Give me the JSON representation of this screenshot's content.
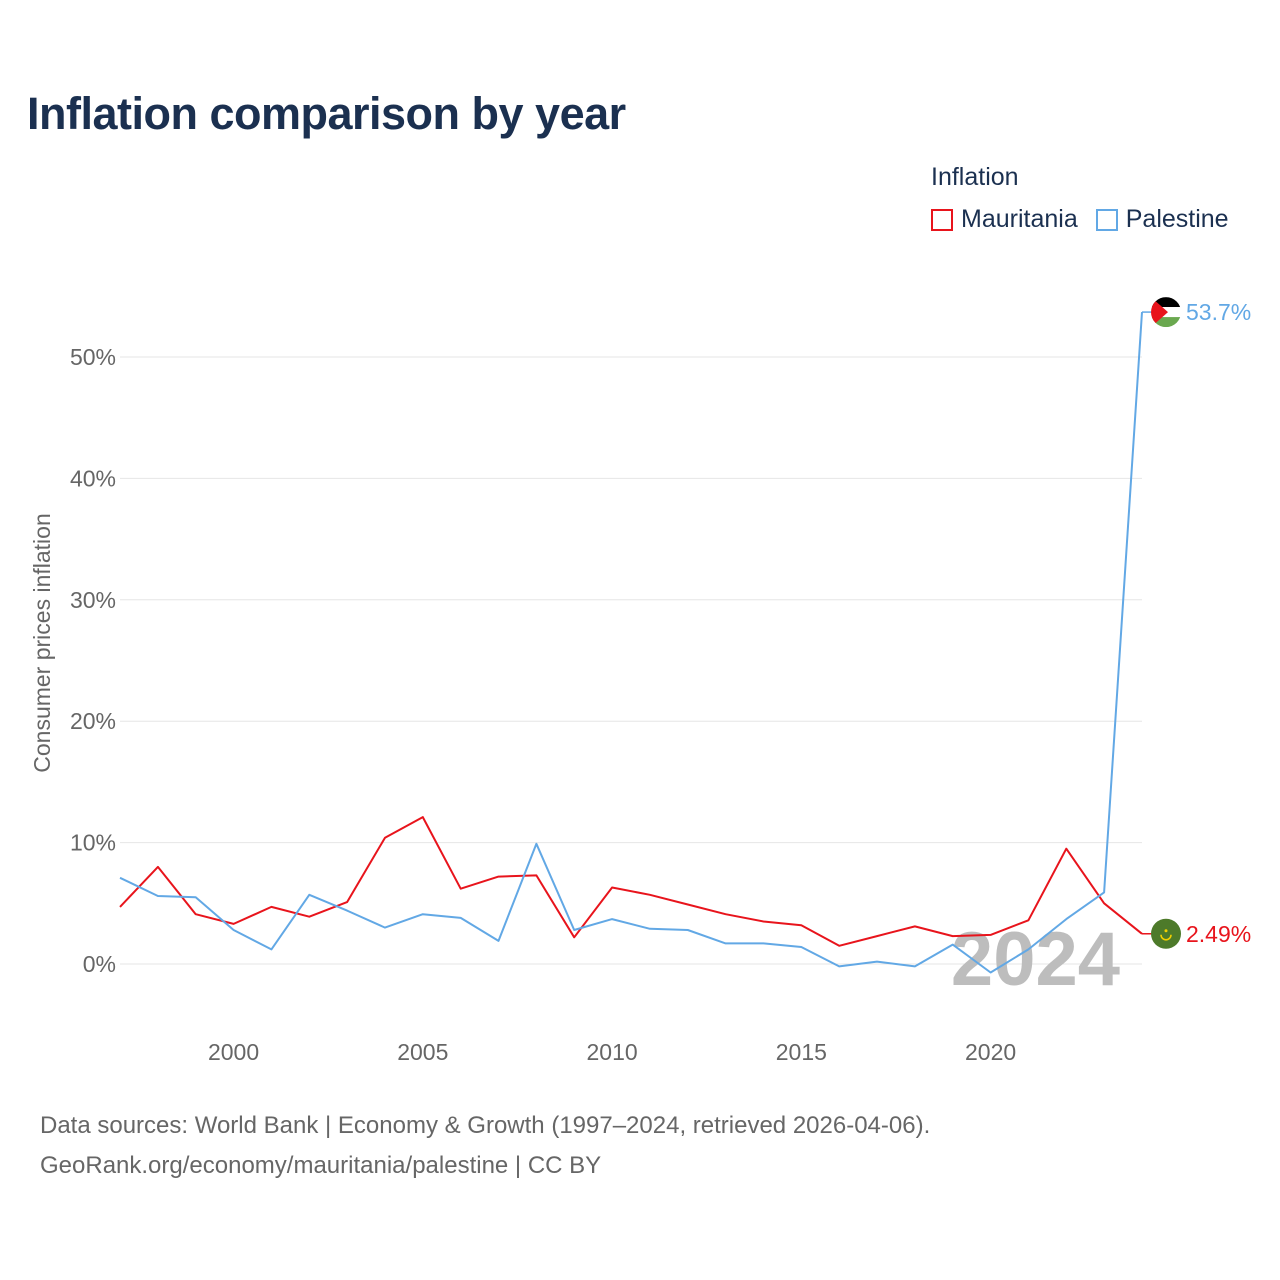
{
  "title": "Inflation comparison by year",
  "legend": {
    "title": "Inflation",
    "items": [
      {
        "label": "Mauritania",
        "color": "#e8141c"
      },
      {
        "label": "Palestine",
        "color": "#62a8e5"
      }
    ]
  },
  "source": {
    "line1": "Data sources: World Bank | Economy & Growth (1997–2024, retrieved 2026-04-06).",
    "line2": "GeoRank.org/economy/mauritania/palestine | CC BY"
  },
  "chart_data": {
    "type": "line",
    "title": "Inflation comparison by year",
    "xlabel": "",
    "ylabel": "Consumer prices inflation",
    "xlim": [
      1997,
      2024
    ],
    "ylim": [
      -5,
      56
    ],
    "x_ticks": [
      2000,
      2005,
      2010,
      2015,
      2020
    ],
    "y_ticks": [
      0,
      10,
      20,
      30,
      40,
      50
    ],
    "y_tick_suffix": "%",
    "year_watermark": "2024",
    "x": [
      1997,
      1998,
      1999,
      2000,
      2001,
      2002,
      2003,
      2004,
      2005,
      2006,
      2007,
      2008,
      2009,
      2010,
      2011,
      2012,
      2013,
      2014,
      2015,
      2016,
      2017,
      2018,
      2019,
      2020,
      2021,
      2022,
      2023,
      2024
    ],
    "series": [
      {
        "name": "Mauritania",
        "color": "#e8141c",
        "end_label": "2.49%",
        "values": [
          4.7,
          8.0,
          4.1,
          3.3,
          4.7,
          3.9,
          5.1,
          10.4,
          12.1,
          6.2,
          7.2,
          7.3,
          2.2,
          6.3,
          5.7,
          4.9,
          4.1,
          3.5,
          3.2,
          1.5,
          2.3,
          3.1,
          2.3,
          2.4,
          3.6,
          9.5,
          5.0,
          2.49
        ]
      },
      {
        "name": "Palestine",
        "color": "#62a8e5",
        "end_label": "53.7%",
        "values": [
          7.1,
          5.6,
          5.5,
          2.8,
          1.2,
          5.7,
          4.4,
          3.0,
          4.1,
          3.8,
          1.9,
          9.9,
          2.8,
          3.7,
          2.9,
          2.8,
          1.7,
          1.7,
          1.4,
          -0.2,
          0.2,
          -0.2,
          1.6,
          -0.7,
          1.2,
          3.7,
          5.9,
          53.7
        ]
      }
    ]
  }
}
